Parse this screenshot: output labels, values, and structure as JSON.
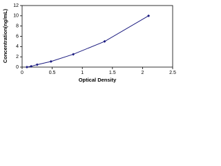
{
  "chart_data": {
    "type": "scatter",
    "x_label": "Optical Density",
    "y_label": "Concentration(ng/mL)",
    "series": [
      {
        "color": "#1c1c80",
        "x": [
          0.08,
          0.15,
          0.25,
          0.48,
          0.85,
          1.37,
          2.1
        ],
        "values": [
          0,
          0.16,
          0.47,
          1.1,
          2.5,
          5,
          10
        ]
      }
    ],
    "line": true,
    "xlim": [
      0,
      2.5
    ],
    "xticks": [
      0,
      0.5,
      1,
      1.5,
      2,
      2.5
    ],
    "ylim": [
      0,
      12
    ],
    "yticks": [
      0,
      2,
      4,
      6,
      8,
      10,
      12
    ]
  }
}
